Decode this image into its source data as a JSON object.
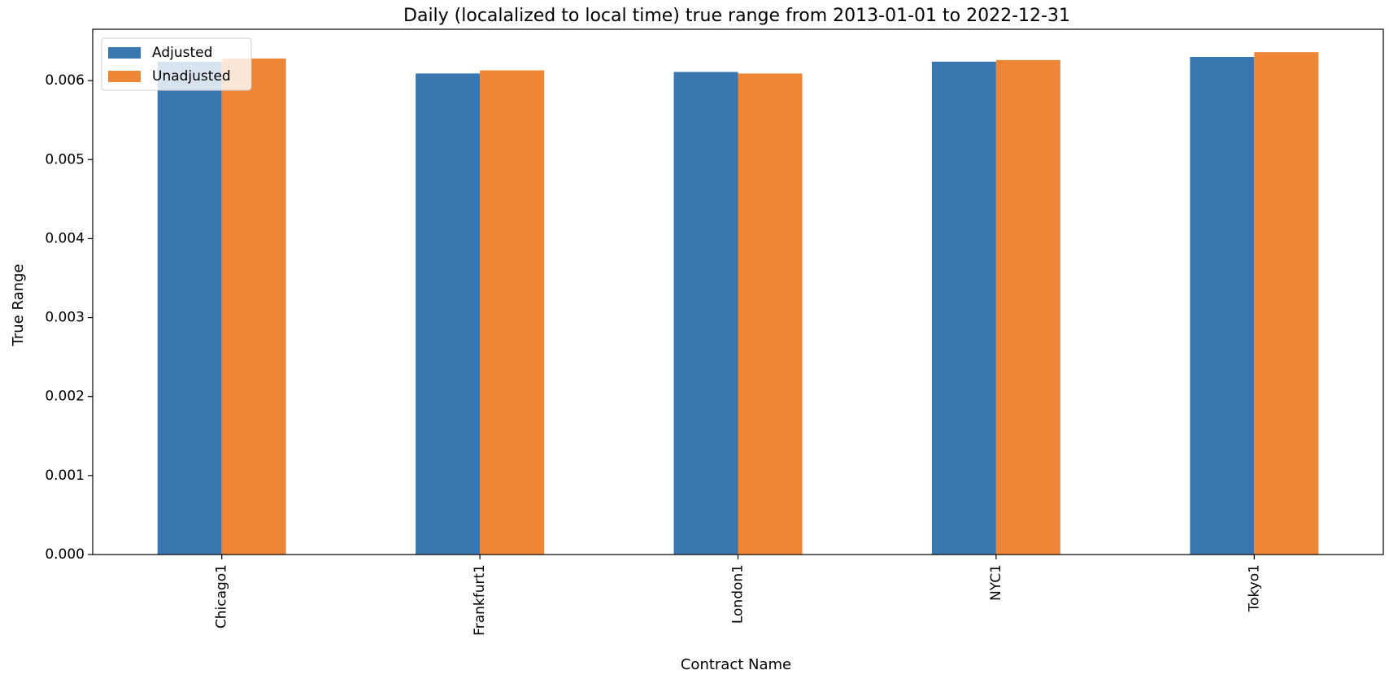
{
  "chart_data": {
    "type": "bar",
    "title": "Daily (localalized to local time) true range from 2013-01-01 to 2022-12-31",
    "xlabel": "Contract Name",
    "ylabel": "True Range",
    "categories": [
      "Chicago1",
      "Frankfurt1",
      "London1",
      "NYC1",
      "Tokyo1"
    ],
    "series": [
      {
        "name": "Adjusted",
        "color": "#3a76af",
        "values": [
          0.00624,
          0.00609,
          0.00611,
          0.00624,
          0.0063
        ]
      },
      {
        "name": "Unadjusted",
        "color": "#ef8636",
        "values": [
          0.00628,
          0.00613,
          0.00609,
          0.00626,
          0.00636
        ]
      }
    ],
    "ylim": [
      0,
      0.00665
    ],
    "yticks": [
      "0.000",
      "0.001",
      "0.002",
      "0.003",
      "0.004",
      "0.005",
      "0.006"
    ],
    "grid": false,
    "legend_position": "top-left"
  }
}
